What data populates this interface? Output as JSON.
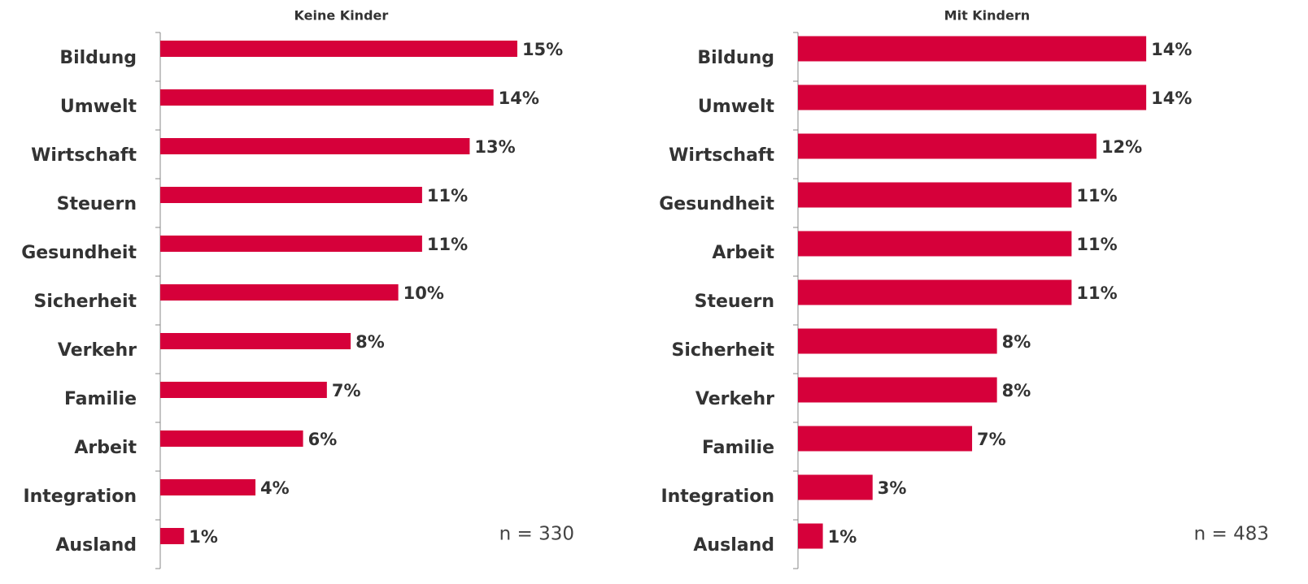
{
  "chart_data": [
    {
      "type": "barh",
      "title": "Keine Kinder",
      "annotation": "n = 330",
      "color": "#d6003a",
      "categories": [
        "Bildung",
        "Umwelt",
        "Wirtschaft",
        "Steuern",
        "Gesundheit",
        "Sicherheit",
        "Verkehr",
        "Familie",
        "Arbeit",
        "Integration",
        "Ausland"
      ],
      "values": [
        15,
        14,
        13,
        11,
        11,
        10,
        8,
        7,
        6,
        4,
        1
      ],
      "value_labels": [
        "15%",
        "14%",
        "13%",
        "11%",
        "11%",
        "10%",
        "8%",
        "7%",
        "6%",
        "4%",
        "1%"
      ],
      "xlim": [
        0,
        19
      ]
    },
    {
      "type": "barh",
      "title": "Mit Kindern",
      "annotation": "n = 483",
      "color": "#d6003a",
      "categories": [
        "Bildung",
        "Umwelt",
        "Wirtschaft",
        "Gesundheit",
        "Arbeit",
        "Steuern",
        "Sicherheit",
        "Verkehr",
        "Familie",
        "Integration",
        "Ausland"
      ],
      "values": [
        14,
        14,
        12,
        11,
        11,
        11,
        8,
        8,
        7,
        3,
        1
      ],
      "value_labels": [
        "14%",
        "14%",
        "12%",
        "11%",
        "11%",
        "11%",
        "8%",
        "8%",
        "7%",
        "3%",
        "1%"
      ],
      "xlim": [
        0,
        19
      ]
    }
  ]
}
